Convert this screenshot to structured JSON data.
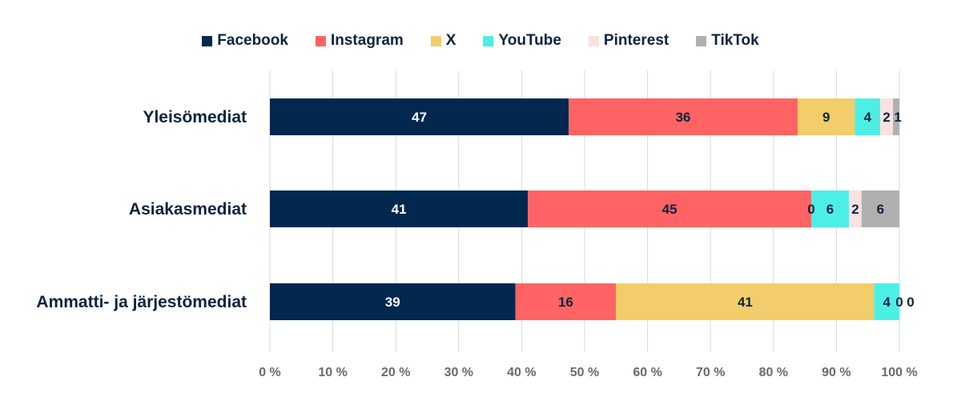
{
  "chart_data": {
    "type": "bar",
    "orientation": "horizontal",
    "stacked": true,
    "categories": [
      "Yleisömediat",
      "Asiakasmediat",
      "Ammatti- ja järjestömediat"
    ],
    "series": [
      {
        "name": "Facebook",
        "color": "#02284f",
        "label_color": "#ffffff",
        "values": [
          47,
          41,
          39
        ]
      },
      {
        "name": "Instagram",
        "color": "#ff6363",
        "label_color": "#0d2340",
        "values": [
          36,
          45,
          16
        ]
      },
      {
        "name": "X",
        "color": "#f2cd69",
        "label_color": "#0d2340",
        "values": [
          9,
          0,
          41
        ]
      },
      {
        "name": "YouTube",
        "color": "#4cefe6",
        "label_color": "#0d2340",
        "values": [
          4,
          6,
          4
        ]
      },
      {
        "name": "Pinterest",
        "color": "#fde0e0",
        "label_color": "#0d2340",
        "values": [
          2,
          2,
          0
        ]
      },
      {
        "name": "TikTok",
        "color": "#b0b0b0",
        "label_color": "#0d2340",
        "values": [
          1,
          6,
          0
        ]
      }
    ],
    "xlim": [
      0,
      100
    ],
    "xticks": [
      "0 %",
      "10 %",
      "20 %",
      "30 %",
      "40 %",
      "50 %",
      "60 %",
      "70 %",
      "80 %",
      "90 %",
      "100 %"
    ],
    "grid": true,
    "legend_position": "top-center",
    "title": "",
    "xlabel": "",
    "ylabel": ""
  }
}
